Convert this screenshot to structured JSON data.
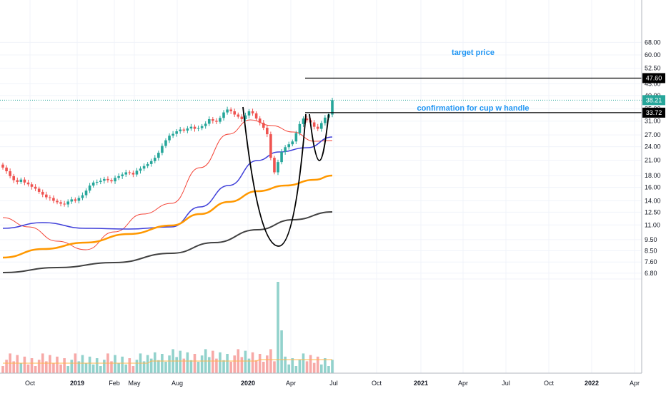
{
  "chart_data": {
    "type": "candlestick",
    "title": "",
    "price_axis": {
      "scale": "log",
      "ylim": [
        6.6,
        68
      ],
      "ticks": [
        "68.00",
        "60.00",
        "52.50",
        "45.00",
        "40.00",
        "35.00",
        "31.00",
        "27.00",
        "24.00",
        "21.00",
        "18.00",
        "16.00",
        "14.00",
        "12.50",
        "11.00",
        "9.50",
        "8.50",
        "7.60",
        "6.80"
      ]
    },
    "time_axis": {
      "ticks": [
        "Oct",
        "2019",
        "Feb",
        "May",
        "Aug",
        "2020",
        "Apr",
        "Jul",
        "Oct",
        "2021",
        "Apr",
        "Jul",
        "Oct",
        "2022",
        "Apr"
      ],
      "bold_ticks": [
        "2019",
        "2020",
        "2021",
        "2022"
      ]
    },
    "price_tags": [
      {
        "label": "38.21",
        "color": "#26a69a"
      },
      {
        "label": "47.60",
        "color": "#000000"
      },
      {
        "label": "33.72",
        "color": "#000000"
      }
    ],
    "annotations": [
      {
        "text": "target price"
      },
      {
        "text": "confirmation for cup w handle"
      }
    ],
    "levels": {
      "last": 38.21,
      "target": 47.6,
      "confirmation": 33.72
    },
    "candles_weekly_close": [
      19.5,
      18.8,
      17.9,
      17.2,
      16.9,
      17.3,
      16.8,
      16.5,
      16.1,
      15.8,
      15.3,
      14.9,
      14.5,
      14.4,
      14.0,
      13.8,
      13.6,
      13.5,
      13.9,
      14.2,
      14.0,
      14.4,
      14.8,
      15.5,
      16.3,
      16.8,
      16.9,
      17.1,
      17.4,
      17.2,
      17.0,
      17.6,
      17.9,
      18.2,
      18.6,
      18.5,
      18.2,
      18.9,
      19.3,
      19.8,
      20.2,
      20.8,
      21.5,
      22.6,
      24.2,
      25.6,
      26.8,
      27.3,
      28.0,
      28.5,
      28.2,
      28.8,
      29.3,
      28.7,
      28.9,
      29.5,
      30.2,
      31.6,
      31.1,
      30.8,
      32.0,
      33.8,
      34.8,
      34.2,
      33.1,
      32.4,
      31.6,
      32.8,
      34.2,
      33.5,
      31.8,
      30.5,
      29.0,
      27.2,
      21.5,
      18.6,
      20.6,
      22.8,
      23.9,
      24.6,
      25.3,
      27.5,
      30.1,
      31.8,
      31.3,
      30.6,
      29.3,
      28.7,
      30.4,
      32.1,
      33.1,
      38.21
    ],
    "moving_averages": [
      {
        "color": "#f44336",
        "width": 1
      },
      {
        "color": "#3f3fd9",
        "width": 1.5
      },
      {
        "color": "#ff9800",
        "width": 2.5
      },
      {
        "color": "#424242",
        "width": 2
      }
    ],
    "volume": {
      "axis_ticks_shared": true,
      "spike_index": 76
    }
  }
}
